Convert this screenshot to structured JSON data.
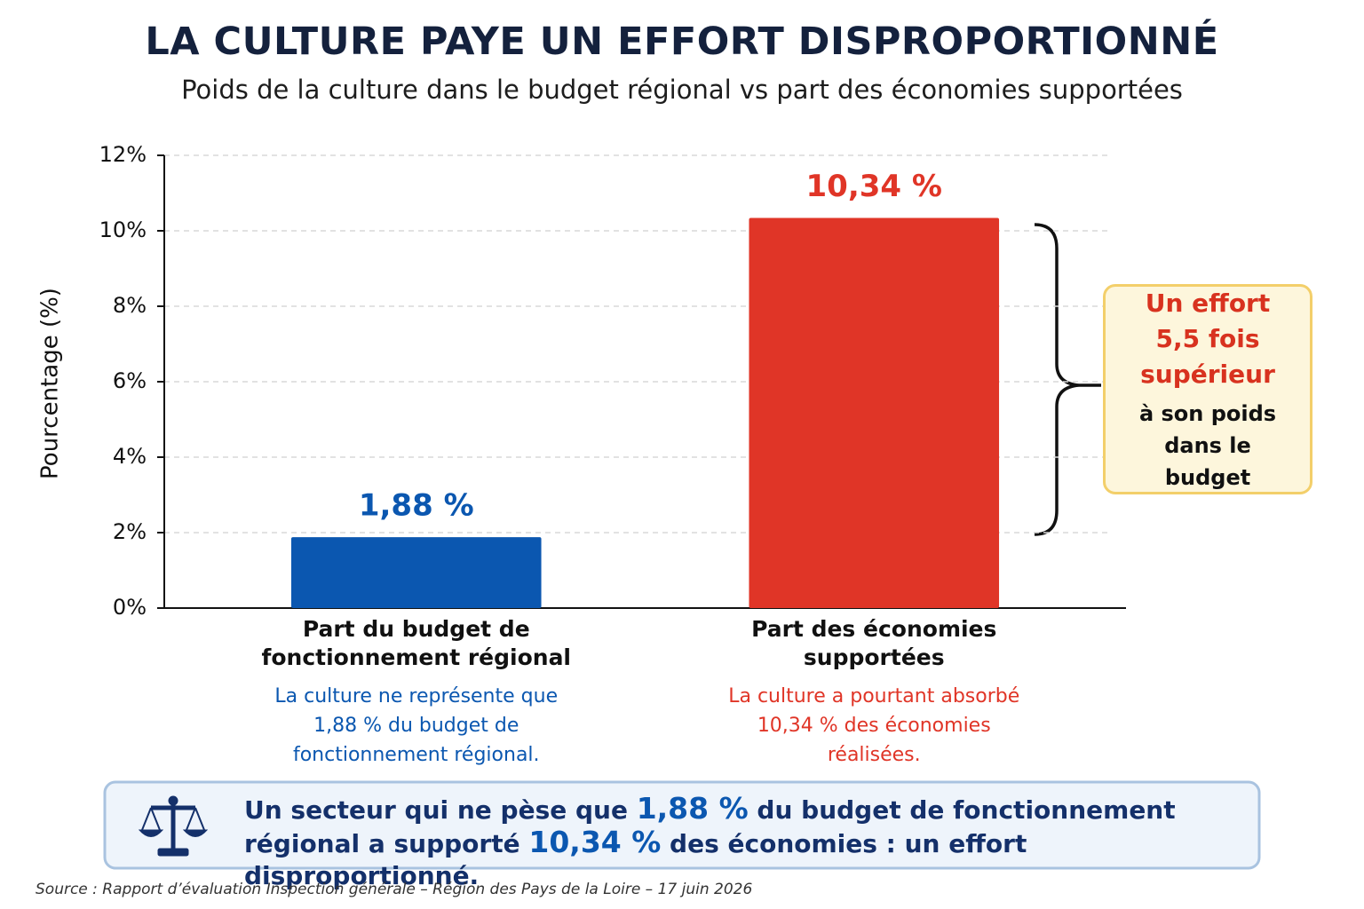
{
  "chart_data": {
    "type": "bar",
    "title": "LA CULTURE PAYE UN EFFORT DISPROPORTIONNÉ",
    "subtitle": "Poids de la culture dans le budget régional vs part des économies supportées",
    "y_label": "Pourcentage (%)",
    "categories": [
      "Part du budget de fonctionnement régional",
      "Part des économies supportées"
    ],
    "values": [
      1.88,
      10.34
    ],
    "value_labels": [
      "1,88 %",
      "10,34 %"
    ],
    "colors": [
      "#0b57b0",
      "#e03527"
    ],
    "descriptions": [
      "La culture ne représente que 1,88 % du budget de fonctionnement régional.",
      "La culture a pourtant absorbé 10,34 % des économies réalisées."
    ],
    "ylim": [
      0,
      12
    ],
    "yticks": [
      {
        "value": 0,
        "label": "0%"
      },
      {
        "value": 2,
        "label": "2%"
      },
      {
        "value": 4,
        "label": "4%"
      },
      {
        "value": 6,
        "label": "6%"
      },
      {
        "value": 8,
        "label": "8%"
      },
      {
        "value": 10,
        "label": "10%"
      },
      {
        "value": 12,
        "label": "12%"
      }
    ],
    "grid": true,
    "annotation": {
      "highlight": "Un effort 5,5 fois supérieur",
      "text": "à son poids dans le budget"
    }
  },
  "callout": {
    "parts": [
      "Un secteur qui ne pèse que ",
      "1,88 %",
      " du budget de fonctionnement régional a supporté ",
      "10,34 %",
      " des économies : un effort disproportionné."
    ]
  },
  "source": "Source : Rapport d’évaluation Inspection générale – Région des Pays de la Loire – 17 juin 2026"
}
